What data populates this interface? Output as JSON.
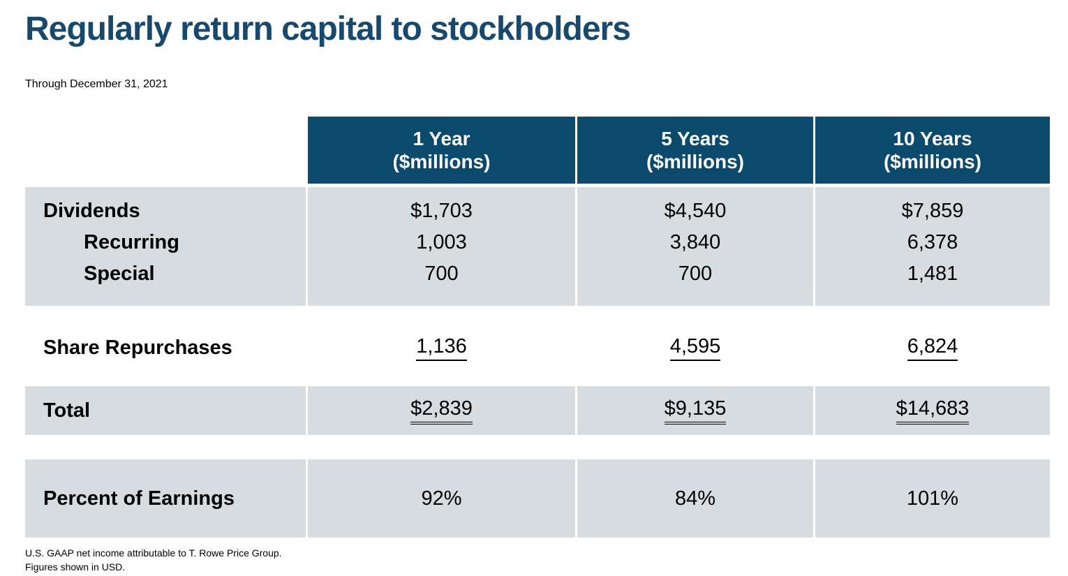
{
  "slide": {
    "title": "Regularly return capital to stockholders",
    "subtitle": "Through December 31, 2021",
    "footnotes": [
      "U.S. GAAP net income attributable to T. Rowe Price Group.",
      "Figures shown in USD."
    ]
  },
  "colors": {
    "title_blue": "#17496e",
    "header_bg": "#0c4a6d",
    "header_text": "#ffffff",
    "row_gray": "#d6dce0",
    "body_text": "#000000"
  },
  "table": {
    "columns": [
      {
        "line1": "1 Year",
        "line2": "($millions)"
      },
      {
        "line1": "5 Years",
        "line2": "($millions)"
      },
      {
        "line1": "10 Years",
        "line2": "($millions)"
      }
    ],
    "dividends": {
      "rows": [
        {
          "label": "Dividends",
          "values": [
            "$1,703",
            "$4,540",
            "$7,859"
          ]
        },
        {
          "label": "Recurring",
          "values": [
            "1,003",
            "3,840",
            "6,378"
          ]
        },
        {
          "label": "Special",
          "values": [
            "700",
            "700",
            "1,481"
          ]
        }
      ]
    },
    "share_repurchases": {
      "label": "Share Repurchases",
      "values": [
        "1,136",
        "4,595",
        "6,824"
      ]
    },
    "total": {
      "label": "Total",
      "values": [
        "$2,839",
        "$9,135",
        "$14,683"
      ]
    },
    "percent_of_earnings": {
      "label": "Percent of Earnings",
      "values": [
        "92%",
        "84%",
        "101%"
      ]
    }
  }
}
